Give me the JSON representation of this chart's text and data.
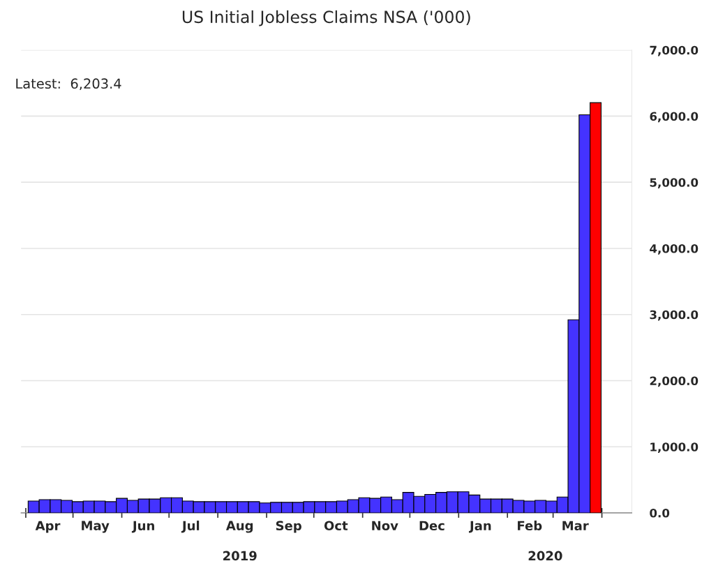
{
  "chart_data": {
    "type": "bar",
    "title": "US Initial Jobless Claims NSA ('000)",
    "x": [
      "2019-04-06",
      "2019-04-13",
      "2019-04-20",
      "2019-04-27",
      "2019-05-04",
      "2019-05-11",
      "2019-05-18",
      "2019-05-25",
      "2019-06-01",
      "2019-06-08",
      "2019-06-15",
      "2019-06-22",
      "2019-06-29",
      "2019-07-06",
      "2019-07-13",
      "2019-07-20",
      "2019-07-27",
      "2019-08-03",
      "2019-08-10",
      "2019-08-17",
      "2019-08-24",
      "2019-08-31",
      "2019-09-07",
      "2019-09-14",
      "2019-09-21",
      "2019-09-28",
      "2019-10-05",
      "2019-10-12",
      "2019-10-19",
      "2019-10-26",
      "2019-11-02",
      "2019-11-09",
      "2019-11-16",
      "2019-11-23",
      "2019-11-30",
      "2019-12-07",
      "2019-12-14",
      "2019-12-21",
      "2019-12-28",
      "2020-01-04",
      "2020-01-11",
      "2020-01-18",
      "2020-01-25",
      "2020-02-01",
      "2020-02-08",
      "2020-02-15",
      "2020-02-22",
      "2020-02-29",
      "2020-03-07",
      "2020-03-14",
      "2020-03-21",
      "2020-03-28"
    ],
    "values": [
      180,
      200,
      200,
      190,
      170,
      180,
      180,
      170,
      220,
      190,
      210,
      210,
      230,
      230,
      180,
      170,
      170,
      170,
      170,
      170,
      170,
      150,
      160,
      160,
      160,
      170,
      170,
      170,
      180,
      200,
      230,
      220,
      240,
      200,
      310,
      250,
      280,
      310,
      320,
      320,
      270,
      210,
      210,
      210,
      190,
      180,
      190,
      180,
      240,
      2920,
      6020,
      6203.4
    ],
    "colors": [
      "#4433ff",
      "#4433ff",
      "#4433ff",
      "#4433ff",
      "#4433ff",
      "#4433ff",
      "#4433ff",
      "#4433ff",
      "#4433ff",
      "#4433ff",
      "#4433ff",
      "#4433ff",
      "#4433ff",
      "#4433ff",
      "#4433ff",
      "#4433ff",
      "#4433ff",
      "#4433ff",
      "#4433ff",
      "#4433ff",
      "#4433ff",
      "#4433ff",
      "#4433ff",
      "#4433ff",
      "#4433ff",
      "#4433ff",
      "#4433ff",
      "#4433ff",
      "#4433ff",
      "#4433ff",
      "#4433ff",
      "#4433ff",
      "#4433ff",
      "#4433ff",
      "#4433ff",
      "#4433ff",
      "#4433ff",
      "#4433ff",
      "#4433ff",
      "#4433ff",
      "#4433ff",
      "#4433ff",
      "#4433ff",
      "#4433ff",
      "#4433ff",
      "#4433ff",
      "#4433ff",
      "#4433ff",
      "#4433ff",
      "#4433ff",
      "#4433ff",
      "#ff0000"
    ],
    "xlim": [
      "2019-03-29",
      "2020-04-20"
    ],
    "xticks": [
      {
        "value": "2019-04-01",
        "label": null
      },
      {
        "value": "2019-04-15",
        "label": "Apr"
      },
      {
        "value": "2019-05-01",
        "label": null
      },
      {
        "value": "2019-05-15",
        "label": "May"
      },
      {
        "value": "2019-06-01",
        "label": null
      },
      {
        "value": "2019-06-15",
        "label": "Jun"
      },
      {
        "value": "2019-07-01",
        "label": null
      },
      {
        "value": "2019-07-15",
        "label": "Jul"
      },
      {
        "value": "2019-08-01",
        "label": null
      },
      {
        "value": "2019-08-15",
        "label": "Aug"
      },
      {
        "value": "2019-09-01",
        "label": null
      },
      {
        "value": "2019-09-15",
        "label": "Sep"
      },
      {
        "value": "2019-10-01",
        "label": null
      },
      {
        "value": "2019-10-15",
        "label": "Oct"
      },
      {
        "value": "2019-11-01",
        "label": null
      },
      {
        "value": "2019-11-15",
        "label": "Nov"
      },
      {
        "value": "2019-12-01",
        "label": null
      },
      {
        "value": "2019-12-15",
        "label": "Dec"
      },
      {
        "value": "2020-01-01",
        "label": null
      },
      {
        "value": "2020-01-15",
        "label": "Jan"
      },
      {
        "value": "2020-02-01",
        "label": null
      },
      {
        "value": "2020-02-15",
        "label": "Feb"
      },
      {
        "value": "2020-03-01",
        "label": null
      },
      {
        "value": "2020-03-15",
        "label": "Mar"
      },
      {
        "value": "2020-04-01",
        "label": null
      }
    ],
    "ylim": [
      0,
      7000
    ],
    "yticks": [
      {
        "value": 0,
        "label": "0.0"
      },
      {
        "value": 1000,
        "label": "1,000.0"
      },
      {
        "value": 2000,
        "label": "2,000.0"
      },
      {
        "value": 3000,
        "label": "3,000.0"
      },
      {
        "value": 4000,
        "label": "4,000.0"
      },
      {
        "value": 5000,
        "label": "5,000.0"
      },
      {
        "value": 6000,
        "label": "6,000.0"
      },
      {
        "value": 7000,
        "label": "7,000.0"
      }
    ],
    "grid": "y",
    "annotations": [
      "Latest:  6,203.4",
      "2019",
      "2020"
    ]
  }
}
